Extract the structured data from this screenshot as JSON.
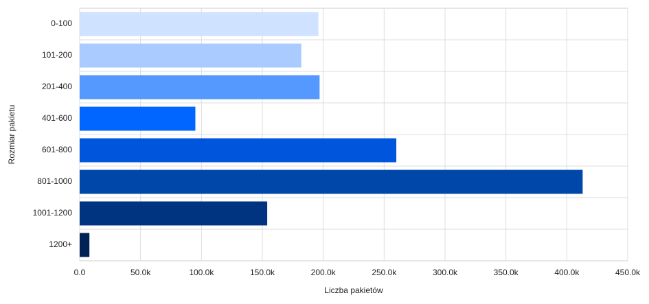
{
  "chart_data": {
    "type": "bar",
    "orientation": "horizontal",
    "x_label": "Liczba pakietów",
    "y_label": "Rozmiar pakietu",
    "categories": [
      "0-100",
      "101-200",
      "201-400",
      "401-600",
      "601-800",
      "801-1000",
      "1001-1200",
      "1200+"
    ],
    "values": [
      196000,
      182000,
      197000,
      95000,
      260000,
      413000,
      154000,
      8000
    ],
    "colors": [
      "#cfe2ff",
      "#aacbff",
      "#5599ff",
      "#0066ff",
      "#0055dd",
      "#0047aa",
      "#003380",
      "#002255"
    ],
    "xlim": [
      0,
      450000
    ],
    "xticks": [
      {
        "value": 0,
        "label": "0.0"
      },
      {
        "value": 50000,
        "label": "50.0k"
      },
      {
        "value": 100000,
        "label": "100.0k"
      },
      {
        "value": 150000,
        "label": "150.0k"
      },
      {
        "value": 200000,
        "label": "200.0k"
      },
      {
        "value": 250000,
        "label": "250.0k"
      },
      {
        "value": 300000,
        "label": "300.0k"
      },
      {
        "value": 350000,
        "label": "350.0k"
      },
      {
        "value": 400000,
        "label": "400.0k"
      },
      {
        "value": 450000,
        "label": "450.0k"
      }
    ],
    "grid": true
  }
}
